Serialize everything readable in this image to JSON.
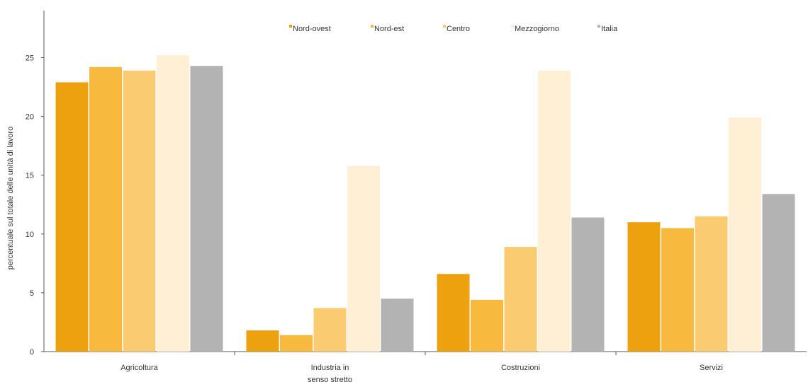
{
  "chart_data": {
    "type": "bar",
    "title": "",
    "xlabel": "",
    "ylabel": "percentuale sul totale delle unità di lavoro",
    "ylim": [
      0,
      29
    ],
    "yticks": [
      0,
      5,
      10,
      15,
      20,
      25
    ],
    "grid": false,
    "legend_position": "top",
    "categories": [
      [
        "Agricoltura"
      ],
      [
        "Industria in",
        "senso stretto"
      ],
      [
        "Costruzioni"
      ],
      [
        "Servizi"
      ]
    ],
    "series": [
      {
        "name": "Nord-ovest",
        "color": "#eea10f",
        "values": [
          22.9,
          1.8,
          6.6,
          11.0
        ]
      },
      {
        "name": "Nord-est",
        "color": "#f7b93e",
        "values": [
          24.2,
          1.4,
          4.4,
          10.5
        ]
      },
      {
        "name": "Centro",
        "color": "#fbcb72",
        "values": [
          23.9,
          3.7,
          8.9,
          11.5
        ]
      },
      {
        "name": "Mezzogiorno",
        "color": "#feefd5",
        "values": [
          25.2,
          15.8,
          23.9,
          19.9
        ]
      },
      {
        "name": "Italia",
        "color": "#b3b3b3",
        "values": [
          24.3,
          4.5,
          11.4,
          13.4
        ]
      }
    ]
  }
}
